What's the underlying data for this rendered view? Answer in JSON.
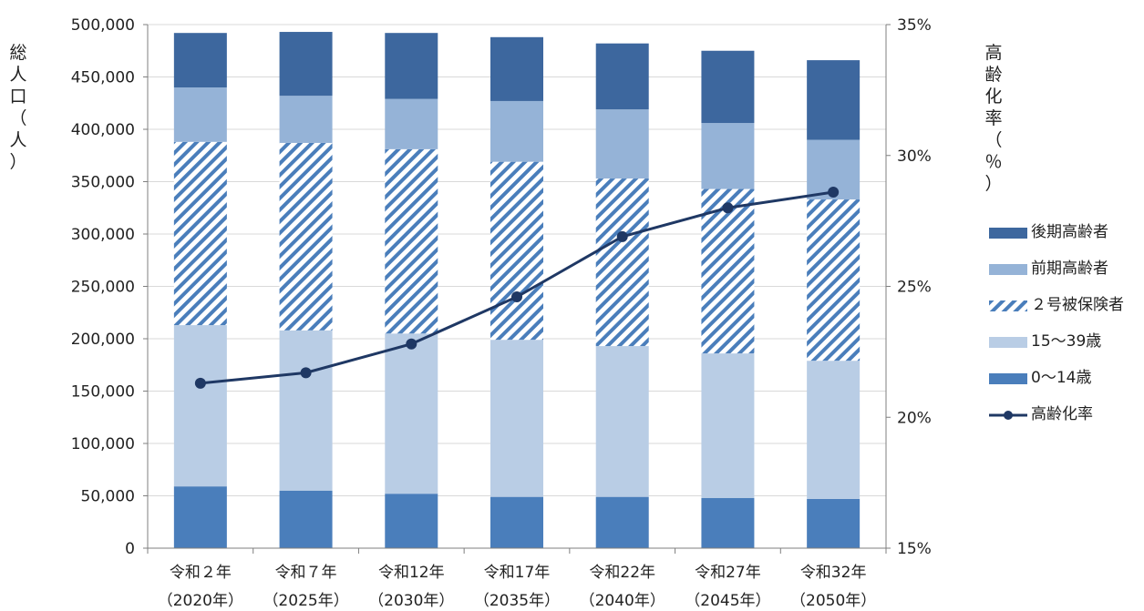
{
  "chart_data": {
    "type": "bar",
    "stacked": true,
    "categories": [
      {
        "line1": "令和２年",
        "line2": "（2020年）"
      },
      {
        "line1": "令和７年",
        "line2": "（2025年）"
      },
      {
        "line1": "令和12年",
        "line2": "（2030年）"
      },
      {
        "line1": "令和17年",
        "line2": "（2035年）"
      },
      {
        "line1": "令和22年",
        "line2": "（2040年）"
      },
      {
        "line1": "令和27年",
        "line2": "（2045年）"
      },
      {
        "line1": "令和32年",
        "line2": "（2050年）"
      }
    ],
    "ylabel": "総人口（人）",
    "y2label": "高齢化率（％）",
    "ylim": [
      0,
      500000
    ],
    "yticks": [
      "500,000",
      "450,000",
      "400,000",
      "350,000",
      "300,000",
      "250,000",
      "200,000",
      "150,000",
      "100,000",
      "50,000",
      "0"
    ],
    "y2lim": [
      15,
      35
    ],
    "y2ticks": [
      "35%",
      "30%",
      "25%",
      "20%",
      "15%"
    ],
    "grid": true,
    "legend_position": "right",
    "series": [
      {
        "name": "0～14歳",
        "color": "#4a7ebb",
        "pattern": "solid",
        "values": [
          59000,
          55000,
          52000,
          49000,
          49000,
          48000,
          47000
        ]
      },
      {
        "name": "15～39歳",
        "color": "#b9cde5",
        "pattern": "solid",
        "values": [
          154000,
          153000,
          153000,
          150000,
          144000,
          138000,
          132000
        ]
      },
      {
        "name": "２号被保険者",
        "color": "#4a7ebb",
        "pattern": "diagonal-stripes",
        "values": [
          175000,
          179000,
          176000,
          170000,
          160000,
          157000,
          154000
        ]
      },
      {
        "name": "前期高齢者",
        "color": "#95b3d7",
        "pattern": "solid",
        "values": [
          52000,
          45000,
          48000,
          58000,
          66000,
          63000,
          57000
        ]
      },
      {
        "name": "後期高齢者",
        "color": "#3d679e",
        "pattern": "solid",
        "values": [
          52000,
          61000,
          63000,
          61000,
          63000,
          69000,
          76000
        ]
      }
    ],
    "line_series": {
      "name": "高齢化率",
      "color": "#1f3864",
      "axis": "right",
      "values": [
        21.3,
        21.7,
        22.8,
        24.6,
        26.9,
        28.0,
        28.6
      ]
    }
  }
}
